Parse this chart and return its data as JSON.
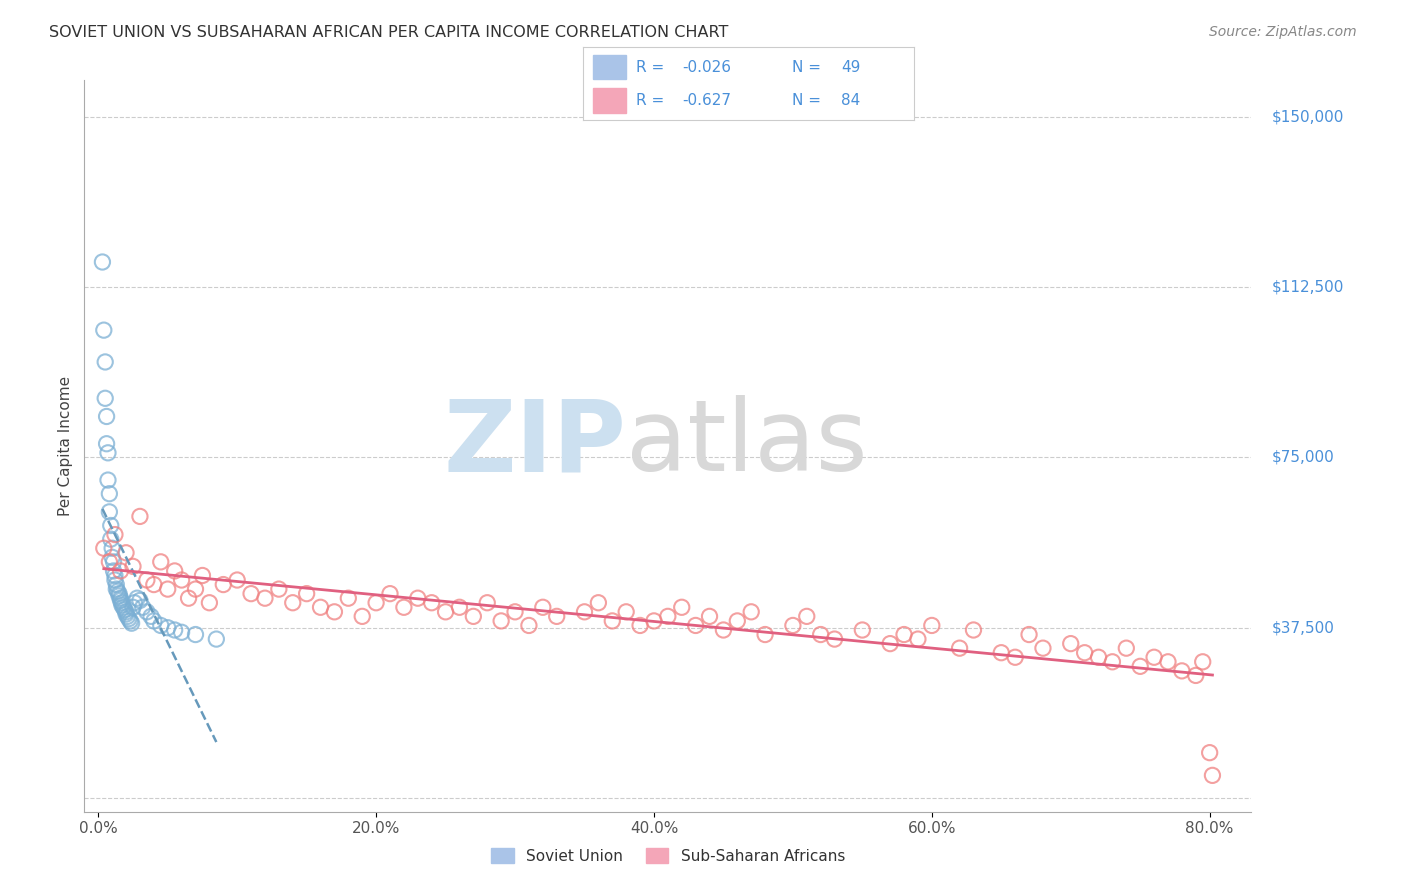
{
  "title": "SOVIET UNION VS SUBSAHARAN AFRICAN PER CAPITA INCOME CORRELATION CHART",
  "source": "Source: ZipAtlas.com",
  "ylabel": "Per Capita Income",
  "xlabel_ticks": [
    "0.0%",
    "20.0%",
    "40.0%",
    "60.0%",
    "80.0%"
  ],
  "xlabel_vals": [
    0.0,
    20.0,
    40.0,
    60.0,
    80.0
  ],
  "ytick_vals": [
    0,
    37500,
    75000,
    112500,
    150000
  ],
  "ytick_labels": [
    "",
    "$37,500",
    "$75,000",
    "$112,500",
    "$150,000"
  ],
  "soviet_color": "#7bafd4",
  "subsaharan_color": "#f08080",
  "soviet_line_color": "#6699bb",
  "subsaharan_line_color": "#e06080",
  "background_color": "#ffffff",
  "grid_color": "#cccccc",
  "title_color": "#333333",
  "source_color": "#888888",
  "watermark_zip_color": "#cce0f0",
  "watermark_atlas_color": "#d8d8d8",
  "right_label_color": "#4a90d9",
  "legend_text_color": "#4a90d9",
  "soviet_x": [
    0.3,
    0.4,
    0.5,
    0.5,
    0.6,
    0.6,
    0.7,
    0.7,
    0.8,
    0.8,
    0.9,
    0.9,
    1.0,
    1.0,
    1.1,
    1.1,
    1.2,
    1.2,
    1.3,
    1.3,
    1.4,
    1.5,
    1.5,
    1.6,
    1.6,
    1.7,
    1.7,
    1.8,
    1.9,
    2.0,
    2.0,
    2.1,
    2.2,
    2.3,
    2.4,
    2.5,
    2.6,
    2.8,
    3.0,
    3.2,
    3.5,
    3.8,
    4.0,
    4.5,
    5.0,
    5.5,
    6.0,
    7.0,
    8.5
  ],
  "soviet_y": [
    118000,
    103000,
    96000,
    88000,
    84000,
    78000,
    76000,
    70000,
    67000,
    63000,
    60000,
    57000,
    55000,
    53000,
    52000,
    50000,
    49000,
    48000,
    47000,
    46000,
    45500,
    45000,
    44500,
    44000,
    43500,
    43000,
    42500,
    42000,
    41500,
    41000,
    40500,
    40000,
    39500,
    39000,
    38500,
    42000,
    43000,
    44000,
    43500,
    42000,
    41000,
    40000,
    39000,
    38000,
    37500,
    37000,
    36500,
    36000,
    35000
  ],
  "subsaharan_x": [
    0.4,
    0.8,
    1.2,
    1.6,
    2.0,
    2.5,
    3.0,
    3.5,
    4.0,
    4.5,
    5.0,
    5.5,
    6.0,
    6.5,
    7.0,
    7.5,
    8.0,
    9.0,
    10.0,
    11.0,
    12.0,
    13.0,
    14.0,
    15.0,
    16.0,
    17.0,
    18.0,
    19.0,
    20.0,
    21.0,
    22.0,
    23.0,
    24.0,
    25.0,
    26.0,
    27.0,
    28.0,
    29.0,
    30.0,
    31.0,
    32.0,
    33.0,
    35.0,
    36.0,
    37.0,
    38.0,
    39.0,
    40.0,
    41.0,
    42.0,
    43.0,
    44.0,
    45.0,
    46.0,
    47.0,
    48.0,
    50.0,
    51.0,
    52.0,
    53.0,
    55.0,
    57.0,
    58.0,
    59.0,
    60.0,
    62.0,
    63.0,
    65.0,
    66.0,
    67.0,
    68.0,
    70.0,
    71.0,
    72.0,
    73.0,
    74.0,
    75.0,
    76.0,
    77.0,
    78.0,
    79.0,
    79.5,
    80.0,
    80.2
  ],
  "subsaharan_y": [
    55000,
    52000,
    58000,
    50000,
    54000,
    51000,
    62000,
    48000,
    47000,
    52000,
    46000,
    50000,
    48000,
    44000,
    46000,
    49000,
    43000,
    47000,
    48000,
    45000,
    44000,
    46000,
    43000,
    45000,
    42000,
    41000,
    44000,
    40000,
    43000,
    45000,
    42000,
    44000,
    43000,
    41000,
    42000,
    40000,
    43000,
    39000,
    41000,
    38000,
    42000,
    40000,
    41000,
    43000,
    39000,
    41000,
    38000,
    39000,
    40000,
    42000,
    38000,
    40000,
    37000,
    39000,
    41000,
    36000,
    38000,
    40000,
    36000,
    35000,
    37000,
    34000,
    36000,
    35000,
    38000,
    33000,
    37000,
    32000,
    31000,
    36000,
    33000,
    34000,
    32000,
    31000,
    30000,
    33000,
    29000,
    31000,
    30000,
    28000,
    27000,
    30000,
    10000,
    5000
  ]
}
